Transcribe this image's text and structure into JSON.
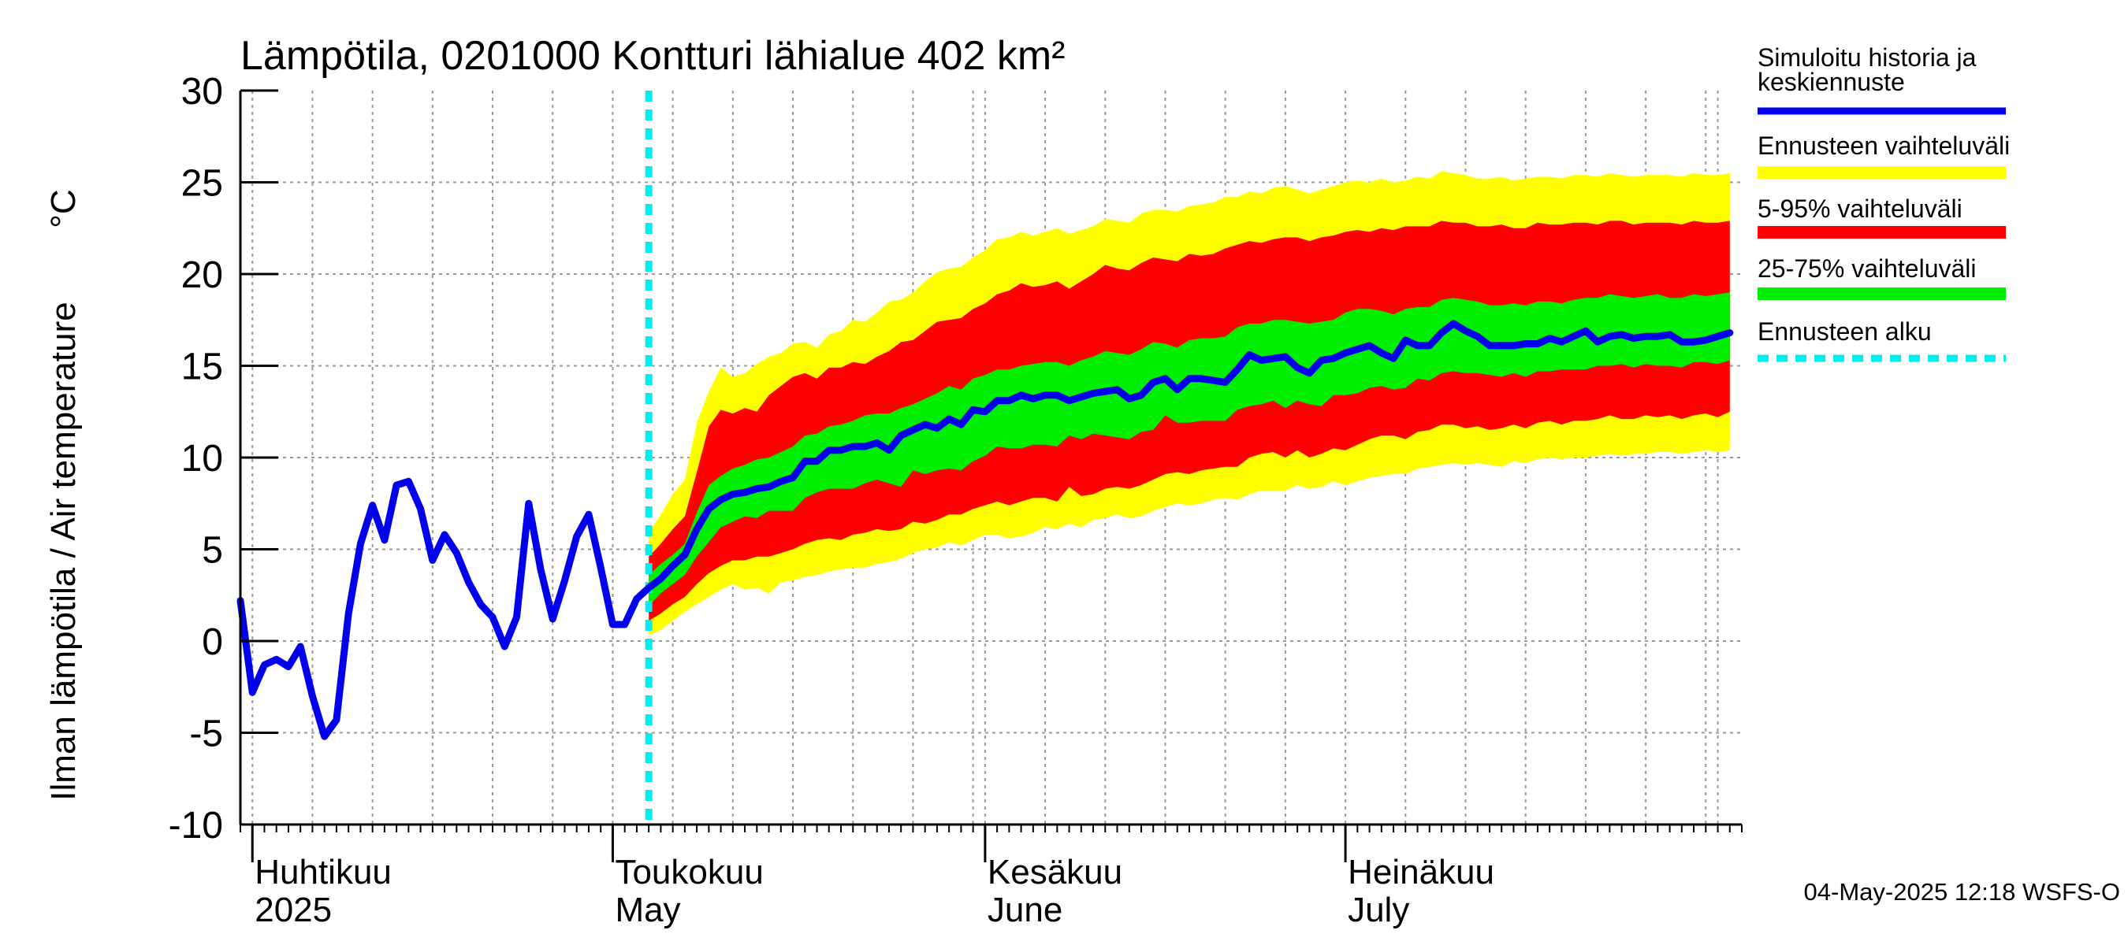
{
  "chart_data": {
    "type": "area",
    "title": "Lämpötila, 0201000 Kontturi lähialue 402 km²",
    "ylabel": "Ilman lämpötila / Air temperature",
    "yunit": "°C",
    "ylim": [
      -10,
      30
    ],
    "yticks": [
      -10,
      -5,
      0,
      5,
      10,
      15,
      20,
      25,
      30
    ],
    "xlim": [
      "2025-03-31",
      "2025-08-03"
    ],
    "grid": true,
    "month_labels": [
      {
        "date": "2025-04-01",
        "fi": "Huhtikuu",
        "en": "2025"
      },
      {
        "date": "2025-05-01",
        "fi": "Toukokuu",
        "en": "May"
      },
      {
        "date": "2025-06-01",
        "fi": "Kesäkuu",
        "en": "June"
      },
      {
        "date": "2025-07-01",
        "fi": "Heinäkuu",
        "en": "July"
      }
    ],
    "forecast_start": "2025-05-04",
    "legend": [
      {
        "label": "Simuloitu historia ja keskiennuste",
        "color": "#0000ee",
        "style": "line"
      },
      {
        "label": "Ennusteen vaihteluväli",
        "color": "#ffff00",
        "style": "band"
      },
      {
        "label": "5-95% vaihteluväli",
        "color": "#ff0000",
        "style": "band"
      },
      {
        "label": "25-75% vaihteluväli",
        "color": "#00ee00",
        "style": "band"
      },
      {
        "label": "Ennusteen alku",
        "color": "#00eeee",
        "style": "dashed"
      }
    ],
    "history": {
      "dates": [
        "2025-03-31",
        "2025-04-01",
        "2025-04-02",
        "2025-04-03",
        "2025-04-04",
        "2025-04-05",
        "2025-04-06",
        "2025-04-07",
        "2025-04-08",
        "2025-04-09",
        "2025-04-10",
        "2025-04-11",
        "2025-04-12",
        "2025-04-13",
        "2025-04-14",
        "2025-04-15",
        "2025-04-16",
        "2025-04-17",
        "2025-04-18",
        "2025-04-19",
        "2025-04-20",
        "2025-04-21",
        "2025-04-22",
        "2025-04-23",
        "2025-04-24",
        "2025-04-25",
        "2025-04-26",
        "2025-04-27",
        "2025-04-28",
        "2025-04-29",
        "2025-04-30",
        "2025-05-01",
        "2025-05-02",
        "2025-05-03",
        "2025-05-04"
      ],
      "values": [
        2.2,
        -2.8,
        -1.3,
        -1.0,
        -1.4,
        -0.3,
        -3.0,
        -5.2,
        -4.3,
        1.5,
        5.3,
        7.4,
        5.5,
        8.5,
        8.7,
        7.2,
        4.4,
        5.8,
        4.8,
        3.2,
        2.0,
        1.3,
        -0.3,
        1.3,
        7.5,
        3.9,
        1.2,
        3.3,
        5.7,
        6.9,
        4.0,
        0.9,
        0.9,
        2.3,
        2.9
      ]
    },
    "forecast": {
      "start": "2025-05-04",
      "median": [
        2.9,
        3.4,
        4.1,
        4.7,
        6.1,
        7.2,
        7.7,
        8.0,
        8.1,
        8.3,
        8.4,
        8.7,
        8.9,
        9.8,
        9.8,
        10.4,
        10.4,
        10.6,
        10.6,
        10.8,
        10.4,
        11.2,
        11.5,
        11.8,
        11.6,
        12.1,
        11.8,
        12.6,
        12.5,
        13.1,
        13.1,
        13.4,
        13.2,
        13.4,
        13.4,
        13.1,
        13.3,
        13.5,
        13.6,
        13.7,
        13.2,
        13.4,
        14.1,
        14.3,
        13.7,
        14.3,
        14.3,
        14.2,
        14.1,
        14.8,
        15.6,
        15.3,
        15.4,
        15.5,
        14.9,
        14.6,
        15.3,
        15.4,
        15.7,
        15.9,
        16.1,
        15.7,
        15.4,
        16.4,
        16.1,
        16.1,
        16.8,
        17.3,
        16.9,
        16.6,
        16.1,
        16.1,
        16.1,
        16.2,
        16.2,
        16.5,
        16.3,
        16.6,
        16.9,
        16.3,
        16.6,
        16.7,
        16.5,
        16.6,
        16.6,
        16.7,
        16.3,
        16.3,
        16.4,
        16.6,
        16.8
      ],
      "p25": [
        1.9,
        2.6,
        3.1,
        3.6,
        4.6,
        5.4,
        6.2,
        6.5,
        6.8,
        6.7,
        7.1,
        7.1,
        7.1,
        7.8,
        8.1,
        8.3,
        8.3,
        8.3,
        8.6,
        8.8,
        8.6,
        8.4,
        9.3,
        9.1,
        9.3,
        9.4,
        9.3,
        9.8,
        10.1,
        10.6,
        10.5,
        10.5,
        10.7,
        10.7,
        10.6,
        11.2,
        11.0,
        11.3,
        11.2,
        11.1,
        11.0,
        11.4,
        11.5,
        12.3,
        11.9,
        11.9,
        12.0,
        12.0,
        12.0,
        12.6,
        12.8,
        12.9,
        13.1,
        12.7,
        13.1,
        12.9,
        12.8,
        13.4,
        13.4,
        13.5,
        13.8,
        13.9,
        13.7,
        13.8,
        14.3,
        14.2,
        14.6,
        14.7,
        14.6,
        14.6,
        14.5,
        14.4,
        14.6,
        14.4,
        14.7,
        14.7,
        14.8,
        14.8,
        14.8,
        15.0,
        15.0,
        15.1,
        14.9,
        15.1,
        15.0,
        15.0,
        14.9,
        15.2,
        15.2,
        15.1,
        15.3
      ],
      "p75": [
        3.6,
        4.2,
        4.7,
        5.3,
        7.0,
        8.5,
        9.0,
        9.4,
        9.6,
        9.9,
        10.0,
        10.3,
        10.6,
        11.2,
        11.3,
        11.7,
        11.8,
        12.0,
        12.3,
        12.4,
        12.4,
        12.7,
        12.9,
        13.2,
        13.5,
        13.9,
        13.7,
        14.3,
        14.5,
        14.8,
        14.8,
        15.0,
        15.1,
        15.2,
        15.2,
        15.0,
        15.3,
        15.5,
        15.8,
        15.7,
        15.6,
        15.9,
        16.3,
        16.2,
        16.0,
        16.4,
        16.5,
        16.5,
        16.6,
        17.1,
        17.3,
        17.3,
        17.5,
        17.5,
        17.4,
        17.3,
        17.4,
        17.5,
        17.9,
        18.1,
        18.1,
        18.0,
        17.8,
        18.1,
        18.2,
        18.2,
        18.6,
        18.7,
        18.6,
        18.5,
        18.3,
        18.3,
        18.4,
        18.3,
        18.5,
        18.5,
        18.4,
        18.6,
        18.7,
        18.7,
        18.9,
        18.8,
        18.7,
        18.8,
        18.9,
        18.7,
        18.7,
        18.9,
        18.8,
        18.9,
        19.0
      ],
      "p5": [
        1.1,
        1.5,
        2.0,
        2.4,
        3.1,
        3.7,
        4.1,
        4.4,
        4.4,
        4.6,
        4.6,
        4.8,
        5.0,
        5.3,
        5.5,
        5.6,
        5.5,
        5.8,
        5.9,
        6.1,
        6.0,
        6.1,
        6.5,
        6.4,
        6.6,
        6.9,
        6.9,
        7.2,
        7.4,
        7.6,
        7.4,
        7.6,
        7.8,
        7.8,
        7.6,
        8.4,
        7.9,
        8.0,
        8.3,
        8.4,
        8.3,
        8.5,
        8.8,
        9.1,
        9.2,
        9.1,
        9.3,
        9.4,
        9.5,
        9.5,
        10.0,
        10.2,
        10.3,
        10.0,
        10.4,
        10.0,
        10.2,
        10.5,
        10.4,
        10.7,
        11.0,
        11.2,
        11.2,
        11.0,
        11.4,
        11.5,
        11.8,
        11.8,
        11.6,
        11.7,
        11.5,
        11.6,
        11.8,
        11.6,
        11.9,
        12.0,
        11.8,
        12.0,
        12.0,
        12.1,
        12.3,
        12.1,
        12.1,
        12.3,
        12.2,
        12.3,
        12.1,
        12.3,
        12.4,
        12.2,
        12.5
      ],
      "p95": [
        4.6,
        5.3,
        6.1,
        6.8,
        9.2,
        11.7,
        12.6,
        12.4,
        12.7,
        12.5,
        13.4,
        13.9,
        14.4,
        14.6,
        14.3,
        14.9,
        14.9,
        15.2,
        15.1,
        15.5,
        15.8,
        16.3,
        16.4,
        16.9,
        17.4,
        17.5,
        17.6,
        18.1,
        18.4,
        18.9,
        19.1,
        19.5,
        19.3,
        19.4,
        19.6,
        19.2,
        19.6,
        20.0,
        20.5,
        20.3,
        20.2,
        20.6,
        20.9,
        20.8,
        20.7,
        21.1,
        21.0,
        21.1,
        21.4,
        21.6,
        21.8,
        21.7,
        21.9,
        22.0,
        22.0,
        21.8,
        22.0,
        22.1,
        22.3,
        22.4,
        22.3,
        22.5,
        22.4,
        22.6,
        22.6,
        22.6,
        22.9,
        22.8,
        22.8,
        22.6,
        22.6,
        22.7,
        22.5,
        22.5,
        22.8,
        22.7,
        22.7,
        22.8,
        22.8,
        22.7,
        22.9,
        22.9,
        22.7,
        22.8,
        22.8,
        22.8,
        22.7,
        22.9,
        22.8,
        22.8,
        22.9
      ],
      "min": [
        0.3,
        0.6,
        1.1,
        1.6,
        2.0,
        2.4,
        2.8,
        3.1,
        2.8,
        2.9,
        2.6,
        3.2,
        3.3,
        3.5,
        3.6,
        3.8,
        3.9,
        4.0,
        4.0,
        4.2,
        4.3,
        4.5,
        4.8,
        5.0,
        5.1,
        5.4,
        5.2,
        5.5,
        5.8,
        5.8,
        5.6,
        5.7,
        5.9,
        6.2,
        6.1,
        6.4,
        6.2,
        6.6,
        6.7,
        6.9,
        6.7,
        6.8,
        7.1,
        7.3,
        7.5,
        7.4,
        7.5,
        7.7,
        7.8,
        7.7,
        8.0,
        8.2,
        8.2,
        8.2,
        8.5,
        8.3,
        8.4,
        8.7,
        8.5,
        8.7,
        8.9,
        9.0,
        9.1,
        9.1,
        9.4,
        9.5,
        9.6,
        9.7,
        9.6,
        9.7,
        9.6,
        9.5,
        9.8,
        9.7,
        9.9,
        10.0,
        9.9,
        10.0,
        10.0,
        10.1,
        10.2,
        10.1,
        10.2,
        10.2,
        10.3,
        10.3,
        10.2,
        10.3,
        10.4,
        10.3,
        10.4
      ],
      "max": [
        5.9,
        6.9,
        8.0,
        8.8,
        11.9,
        13.6,
        14.9,
        14.4,
        14.6,
        15.1,
        15.5,
        15.7,
        16.2,
        16.3,
        16.0,
        16.7,
        16.9,
        17.5,
        17.4,
        17.9,
        18.5,
        18.6,
        19.0,
        19.6,
        20.1,
        20.3,
        20.4,
        20.9,
        21.3,
        21.9,
        22.0,
        22.3,
        22.1,
        22.3,
        22.5,
        22.2,
        22.4,
        22.6,
        23.0,
        22.9,
        22.8,
        23.3,
        23.5,
        23.5,
        23.4,
        23.7,
        23.8,
        23.9,
        24.2,
        24.2,
        24.5,
        24.4,
        24.7,
        24.8,
        24.6,
        24.4,
        24.6,
        24.8,
        25.0,
        25.1,
        25.0,
        25.2,
        25.0,
        25.1,
        25.3,
        25.2,
        25.6,
        25.5,
        25.4,
        25.2,
        25.2,
        25.3,
        25.1,
        25.2,
        25.3,
        25.3,
        25.2,
        25.4,
        25.4,
        25.3,
        25.5,
        25.4,
        25.3,
        25.4,
        25.4,
        25.4,
        25.3,
        25.5,
        25.4,
        25.4,
        25.5
      ]
    }
  },
  "footer": {
    "timestamp": "04-May-2025 12:18 WSFS-O"
  }
}
